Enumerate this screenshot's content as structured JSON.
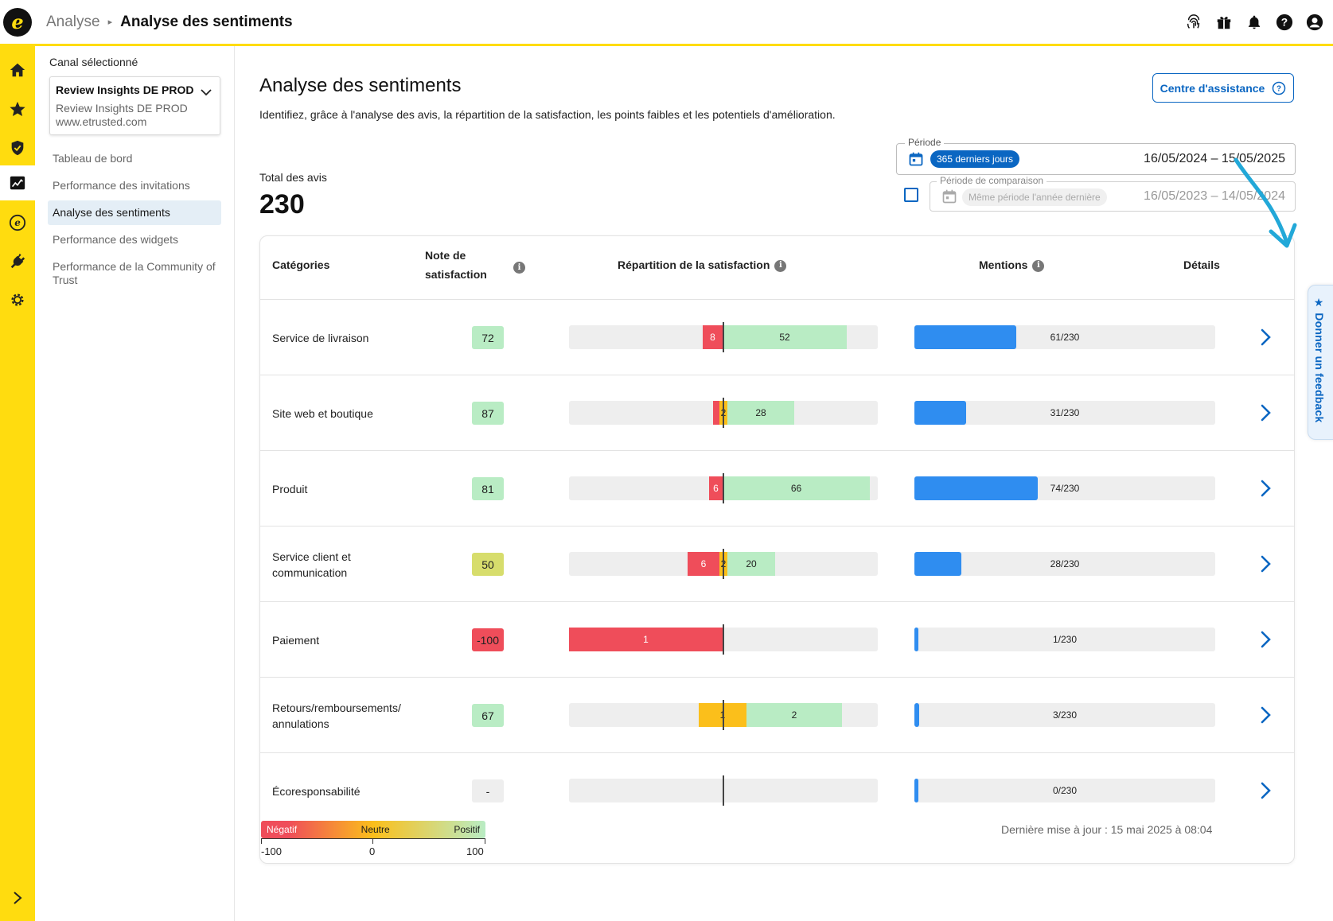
{
  "header": {
    "breadcrumb_parent": "Analyse",
    "breadcrumb_current": "Analyse des sentiments",
    "logo_letter": "e",
    "icons": [
      "fingerprint-icon",
      "gift-icon",
      "bell-icon",
      "help-icon",
      "account-icon"
    ]
  },
  "rail": {
    "items": [
      "home-icon",
      "star-icon",
      "shield-icon",
      "analytics-icon",
      "etrusted-icon",
      "plug-icon",
      "settings-icon"
    ],
    "expand_icon": "chevron-right-icon"
  },
  "subnav": {
    "label": "Canal sélectionné",
    "channel_title": "Review Insights DE PROD",
    "channel_line1": "Review Insights DE PROD",
    "channel_line2": "www.etrusted.com",
    "items": [
      {
        "label": "Tableau de bord"
      },
      {
        "label": "Performance des invitations"
      },
      {
        "label": "Analyse des sentiments"
      },
      {
        "label": "Performance des widgets"
      },
      {
        "label": "Performance de la Community of Trust"
      }
    ]
  },
  "main": {
    "title": "Analyse des sentiments",
    "description": "Identifiez, grâce à l'analyse des avis, la répartition de la satisfaction, les points faibles et les potentiels d'amélioration.",
    "assist_label": "Centre d'assistance",
    "total_label": "Total des avis",
    "total_value": "230",
    "period": {
      "legend": "Période",
      "chip": "365 derniers jours",
      "dates": "16/05/2024 – 15/05/2025"
    },
    "comparison": {
      "legend": "Période de comparaison",
      "chip": "Même période l'année dernière",
      "dates": "16/05/2023 – 14/05/2024"
    }
  },
  "table": {
    "headers": {
      "categories": "Catégories",
      "score": "Note de satisfaction",
      "distribution": "Répartition de la satisfaction",
      "mentions": "Mentions",
      "details": "Détails"
    },
    "total_reviews": 230,
    "rows": [
      {
        "category": "Service de livraison",
        "score": "72",
        "score_color": "#b9ecc4",
        "negative": "8",
        "neutral": "",
        "positive": "52",
        "mentions_count": 61,
        "mentions": "61/230"
      },
      {
        "category": "Site web et boutique",
        "score": "87",
        "score_color": "#b9ecc4",
        "negative": "",
        "neutral": "2",
        "positive": "28",
        "mentions_count": 31,
        "mentions": "31/230"
      },
      {
        "category": "Produit",
        "score": "81",
        "score_color": "#b9ecc4",
        "negative": "6",
        "neutral": "",
        "positive": "66",
        "mentions_count": 74,
        "mentions": "74/230"
      },
      {
        "category": "Service client et communication",
        "score": "50",
        "score_color": "#d7dd6c",
        "negative": "6",
        "neutral": "2",
        "positive": "20",
        "mentions_count": 28,
        "mentions": "28/230"
      },
      {
        "category": "Paiement",
        "score": "-100",
        "score_color": "#ef4d5a",
        "negative": "1",
        "neutral": "",
        "positive": "",
        "mentions_count": 1,
        "mentions": "1/230"
      },
      {
        "category": "Retours/remboursements/ annulations",
        "score": "67",
        "score_color": "#b9ecc4",
        "negative": "",
        "neutral": "1",
        "positive": "2",
        "mentions_count": 3,
        "mentions": "3/230"
      },
      {
        "category": "Écoresponsabilité",
        "score": "-",
        "score_color": "#eeeeee",
        "negative": "",
        "neutral": "",
        "positive": "",
        "mentions_count": 0,
        "mentions": "0/230"
      }
    ]
  },
  "legend": {
    "negative": "Négatif",
    "neutral": "Neutre",
    "positive": "Positif",
    "min": "-100",
    "mid": "0",
    "max": "100"
  },
  "footer": {
    "updated": "Dernière mise à jour : 15 mai 2025 à 08:04"
  },
  "feedback": {
    "label": "★ Donner un feedback"
  },
  "colors": {
    "brand_yellow": "#ffdc0f",
    "accent_blue": "#0a66c2",
    "negative": "#ef4d5a",
    "neutral": "#fbbf1b",
    "positive": "#b9ecc4",
    "mentions": "#2f8df0"
  }
}
